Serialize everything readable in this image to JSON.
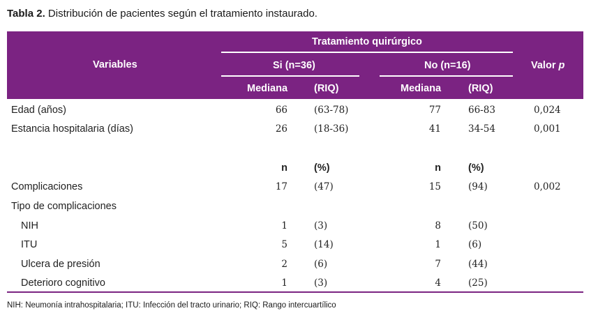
{
  "caption": {
    "label": "Tabla 2.",
    "text": " Distribución de pacientes según el tratamiento instaurado."
  },
  "header": {
    "variables": "Variables",
    "group": "Tratamiento quirúrgico",
    "si": "Si (n=36)",
    "no": "No (n=16)",
    "valor": "Valor ",
    "valor_p": "p",
    "si_col1": "Mediana",
    "si_col2": "(RIQ)",
    "no_col1": "Mediana",
    "no_col2": "(RIQ)"
  },
  "rows": [
    {
      "label": "Edad (años)",
      "si_a": "66",
      "si_b": "(63-78)",
      "no_a": "77",
      "no_b": "66-83",
      "p": "0,024"
    },
    {
      "label": "Estancia hospitalaria (días)",
      "si_a": "26",
      "si_b": "(18-36)",
      "no_a": "41",
      "no_b": "34-54",
      "p": "0,001"
    },
    {
      "label": "",
      "si_a": "n",
      "si_b": "(%)",
      "no_a": "n",
      "no_b": "(%)",
      "p": ""
    },
    {
      "label": "Complicaciones",
      "si_a": "17",
      "si_b": "(47)",
      "no_a": "15",
      "no_b": "(94)",
      "p": "0,002"
    },
    {
      "label": "Tipo de complicaciones",
      "si_a": "",
      "si_b": "",
      "no_a": "",
      "no_b": "",
      "p": ""
    },
    {
      "label": "NIH",
      "si_a": "1",
      "si_b": "(3)",
      "no_a": "8",
      "no_b": "(50)",
      "p": ""
    },
    {
      "label": "ITU",
      "si_a": "5",
      "si_b": "(14)",
      "no_a": "1",
      "no_b": "(6)",
      "p": ""
    },
    {
      "label": "Ulcera de presión",
      "si_a": "2",
      "si_b": "(6)",
      "no_a": "7",
      "no_b": "(44)",
      "p": ""
    },
    {
      "label": "Deterioro cognitivo",
      "si_a": "1",
      "si_b": "(3)",
      "no_a": "4",
      "no_b": "(25)",
      "p": ""
    }
  ],
  "footnote": "NIH: Neumonía intrahospitalaria; ITU: Infección del tracto urinario; RIQ: Rango intercuartílico",
  "colors": {
    "header_bg": "#7b2382",
    "header_text": "#ffffff"
  }
}
